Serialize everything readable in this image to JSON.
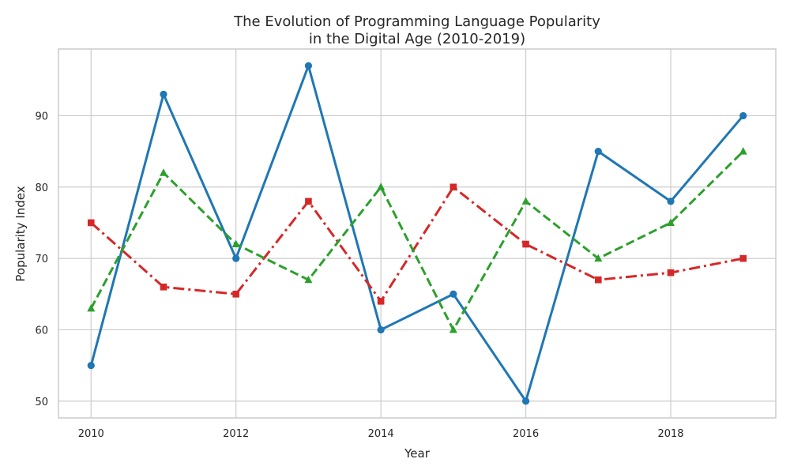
{
  "chart_data": {
    "type": "line",
    "title_line1": "The Evolution of Programming Language Popularity",
    "title_line2": "in the Digital Age (2010-2019)",
    "xlabel": "Year",
    "ylabel": "Popularity Index",
    "x": [
      2010,
      2011,
      2012,
      2013,
      2014,
      2015,
      2016,
      2017,
      2018,
      2019
    ],
    "xticks": [
      2010,
      2012,
      2014,
      2016,
      2018
    ],
    "yticks": [
      50,
      60,
      70,
      80,
      90
    ],
    "xlim": [
      2009.55,
      2019.45
    ],
    "ylim": [
      47.65,
      99.35
    ],
    "grid": true,
    "legend": "none",
    "series": [
      {
        "color": "#1f77b4",
        "style": "solid",
        "marker": "circle",
        "values": [
          55,
          93,
          70,
          97,
          60,
          65,
          50,
          85,
          78,
          90
        ]
      },
      {
        "color": "#d62728",
        "style": "dashdot",
        "marker": "square",
        "values": [
          75,
          66,
          65,
          78,
          64,
          80,
          72,
          67,
          68,
          70
        ]
      },
      {
        "color": "#2ca02c",
        "style": "dashed",
        "marker": "triangle",
        "values": [
          63,
          82,
          72,
          67,
          80,
          60,
          78,
          70,
          75,
          85
        ]
      }
    ]
  }
}
